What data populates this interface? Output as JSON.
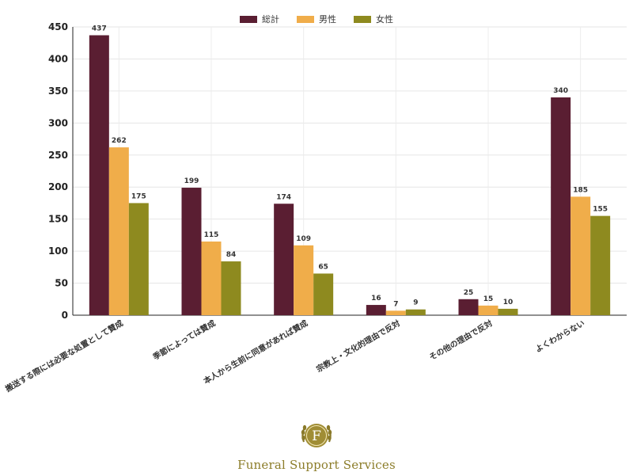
{
  "chart_data": {
    "type": "bar",
    "categories": [
      "搬送する際には必要な処置として賛成",
      "季節によっては賛成",
      "本人から生前に同意があれば賛成",
      "宗教上・文化的理由で反対",
      "その他の理由で反対",
      "よくわからない"
    ],
    "series": [
      {
        "name": "総計",
        "values": [
          437,
          199,
          174,
          16,
          25,
          340
        ]
      },
      {
        "name": "男性",
        "values": [
          262,
          115,
          109,
          7,
          15,
          185
        ]
      },
      {
        "name": "女性",
        "values": [
          175,
          84,
          65,
          9,
          10,
          155
        ]
      }
    ],
    "ylim": [
      0,
      450
    ],
    "yticks": [
      0,
      50,
      100,
      150,
      200,
      250,
      300,
      350,
      400,
      450
    ],
    "grid": true,
    "legend_position": "top-center",
    "colors": [
      "#5a1e32",
      "#f0ad4a",
      "#8e8a1f"
    ]
  },
  "brand": {
    "logo_letter": "F",
    "name": "Funeral Support Services",
    "color": "#8c7d2a"
  }
}
